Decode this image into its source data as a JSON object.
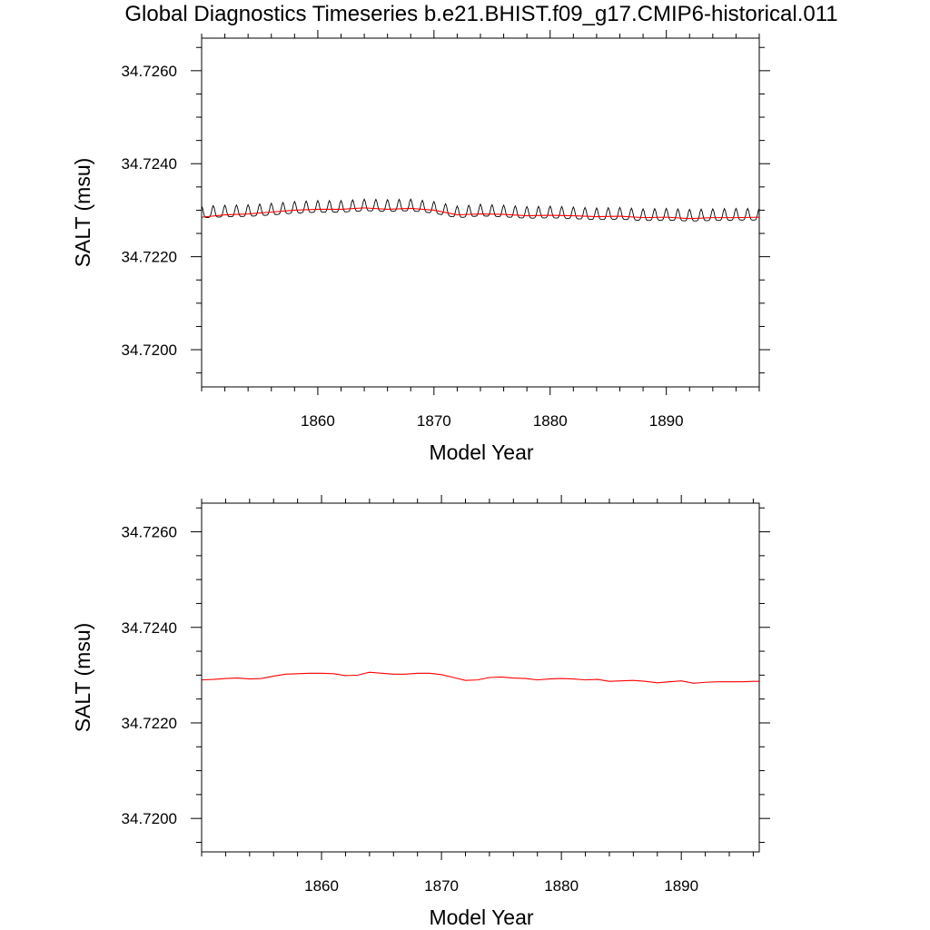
{
  "title": "Global Diagnostics Timeseries b.e21.BHIST.f09_g17.CMIP6-historical.011",
  "colors": {
    "monthly": "#000000",
    "annual": "#ff0000",
    "axes": "#000000"
  },
  "chart_data": [
    {
      "type": "line",
      "panel": "top",
      "xlabel": "Model Year",
      "ylabel": "SALT (msu)",
      "xlim": [
        1850,
        1898
      ],
      "ylim": [
        34.7192,
        34.7267
      ],
      "xticks": [
        1860,
        1870,
        1880,
        1890
      ],
      "xtick_labels": [
        "1860",
        "1870",
        "1880",
        "1890"
      ],
      "yticks": [
        34.72,
        34.722,
        34.724,
        34.726
      ],
      "ytick_labels": [
        "34.7200",
        "34.7220",
        "34.7240",
        "34.7260"
      ],
      "grid": false,
      "series": [
        {
          "kind": "monthly",
          "color": "#000000",
          "seasonal_amplitude": 0.00025,
          "x": [
            1850,
            1852,
            1854,
            1856,
            1858,
            1860,
            1862,
            1864,
            1866,
            1868,
            1870,
            1872,
            1874,
            1876,
            1878,
            1880,
            1882,
            1884,
            1886,
            1888,
            1890,
            1892,
            1894,
            1896,
            1898
          ],
          "values": [
            34.7229,
            34.72292,
            34.72293,
            34.72296,
            34.723,
            34.72302,
            34.72302,
            34.72305,
            34.72304,
            34.72305,
            34.723,
            34.7229,
            34.72294,
            34.72292,
            34.72289,
            34.7229,
            34.72288,
            34.72286,
            34.72287,
            34.72284,
            34.72285,
            34.72283,
            34.72284,
            34.72285,
            34.72285
          ]
        },
        {
          "kind": "annual",
          "color": "#ff0000",
          "x": [
            1850,
            1852,
            1854,
            1856,
            1858,
            1860,
            1862,
            1864,
            1866,
            1868,
            1870,
            1872,
            1874,
            1876,
            1878,
            1880,
            1882,
            1884,
            1886,
            1888,
            1890,
            1892,
            1894,
            1896,
            1898
          ],
          "values": [
            34.72285,
            34.7229,
            34.72292,
            34.72296,
            34.723,
            34.72302,
            34.72302,
            34.72305,
            34.72302,
            34.72304,
            34.723,
            34.7229,
            34.72292,
            34.72291,
            34.72288,
            34.72289,
            34.72288,
            34.72286,
            34.72287,
            34.72284,
            34.72285,
            34.72282,
            34.72284,
            34.72284,
            34.72285
          ]
        }
      ]
    },
    {
      "type": "line",
      "panel": "bottom",
      "xlabel": "Model Year",
      "ylabel": "SALT (msu)",
      "xlim": [
        1850,
        1896.5
      ],
      "ylim": [
        34.7193,
        34.7266
      ],
      "xticks": [
        1860,
        1870,
        1880,
        1890
      ],
      "xtick_labels": [
        "1860",
        "1870",
        "1880",
        "1890"
      ],
      "yticks": [
        34.72,
        34.722,
        34.724,
        34.726
      ],
      "ytick_labels": [
        "34.7200",
        "34.7220",
        "34.7240",
        "34.7260"
      ],
      "grid": false,
      "series": [
        {
          "kind": "annual",
          "color": "#ff0000",
          "x": [
            1850,
            1851,
            1852,
            1853,
            1854,
            1855,
            1856,
            1857,
            1858,
            1859,
            1860,
            1861,
            1862,
            1863,
            1864,
            1865,
            1866,
            1867,
            1868,
            1869,
            1870,
            1871,
            1872,
            1873,
            1874,
            1875,
            1876,
            1877,
            1878,
            1879,
            1880,
            1881,
            1882,
            1883,
            1884,
            1885,
            1886,
            1887,
            1888,
            1889,
            1890,
            1891,
            1892,
            1893,
            1894,
            1895,
            1896,
            1896.5
          ],
          "values": [
            34.7229,
            34.72291,
            34.72293,
            34.72294,
            34.72292,
            34.72293,
            34.72298,
            34.72302,
            34.72303,
            34.72304,
            34.72304,
            34.72303,
            34.72299,
            34.723,
            34.72306,
            34.72304,
            34.72302,
            34.72302,
            34.72304,
            34.72304,
            34.72301,
            34.72295,
            34.72289,
            34.7229,
            34.72295,
            34.72296,
            34.72294,
            34.72293,
            34.7229,
            34.72292,
            34.72293,
            34.72292,
            34.7229,
            34.72291,
            34.72287,
            34.72288,
            34.72289,
            34.72287,
            34.72284,
            34.72286,
            34.72288,
            34.72283,
            34.72285,
            34.72286,
            34.72286,
            34.72286,
            34.72287,
            34.72287
          ]
        }
      ]
    }
  ]
}
